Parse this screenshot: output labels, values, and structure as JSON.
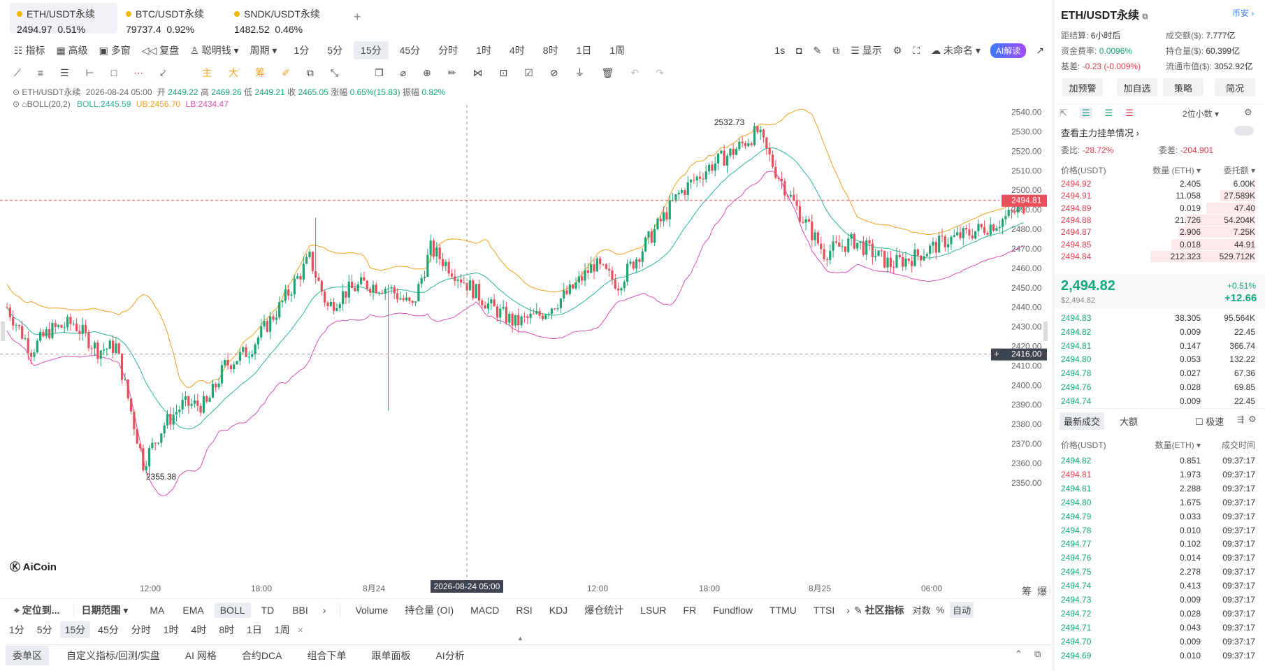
{
  "tickers": [
    {
      "name": "ETH/USDT永续",
      "price": "2494.97",
      "change": "0.51%"
    },
    {
      "name": "BTC/USDT永续",
      "price": "79737.4",
      "change": "0.92%"
    },
    {
      "name": "SNDK/USDT永续",
      "price": "1482.52",
      "change": "0.46%"
    }
  ],
  "toolbar": {
    "indicator": "指标",
    "advanced": "高级",
    "multi_window": "多窗",
    "replay": "复盘",
    "smart_money": "聪明钱",
    "period_label": "周期",
    "periods": [
      "1分",
      "5分",
      "15分",
      "45分",
      "分时",
      "1时",
      "4时",
      "8时",
      "1日",
      "1周"
    ],
    "selected_period": "15分",
    "right_interval": "1s",
    "display": "显示",
    "unnamed": "未命名",
    "ai_explain": "AI解读"
  },
  "drawing_tools": {
    "labels": [
      "主",
      "大",
      "筹"
    ]
  },
  "chart_info": {
    "symbol": "ETH/USDT永续",
    "datetime": "2026-08-24 05:00",
    "open_label": "开",
    "open": "2449.22",
    "high_label": "高",
    "high": "2469.26",
    "low_label": "低",
    "low": "2449.21",
    "close_label": "收",
    "close": "2465.05",
    "change_label": "涨幅",
    "change": "0.65%(15.83)",
    "amplitude_label": "振幅",
    "amplitude": "0.82%",
    "boll_label": "BOLL(20,2)",
    "boll": "BOLL:2445.59",
    "ub": "UB:2456.70",
    "lb": "LB:2434.47",
    "max_label": "2532.73",
    "min_label": "2355.38",
    "crosshair_date": "2026-08-24 05:00",
    "current_price": "2494.81",
    "cross_price": "2416.00",
    "logo": "AiCoin",
    "y_ticks": [
      "2540.00",
      "2530.00",
      "2520.00",
      "2510.00",
      "2500.00",
      "2490.00",
      "2480.00",
      "2470.00",
      "2460.00",
      "2450.00",
      "2440.00",
      "2430.00",
      "2420.00",
      "2410.00",
      "2400.00",
      "2390.00",
      "2380.00",
      "2370.00",
      "2360.00",
      "2350.00"
    ],
    "x_ticks": [
      "12:00",
      "18:00",
      "8月24",
      "12:00",
      "18:00",
      "8月25",
      "06:00"
    ],
    "corner_labels": [
      "筹",
      "爆"
    ]
  },
  "chart_data": {
    "type": "candlestick",
    "interval": "15分",
    "ylim": [
      2350,
      2545
    ],
    "series": {
      "open": [],
      "close": []
    },
    "overlays": [
      "BOLL(20,2)"
    ]
  },
  "indicator_bar": {
    "locate": "定位到...",
    "date_range": "日期范围",
    "main": [
      "MA",
      "EMA",
      "BOLL",
      "TD",
      "BBI"
    ],
    "sub": [
      "Volume",
      "持仓量 (OI)",
      "MACD",
      "RSI",
      "KDJ",
      "爆仓统计",
      "LSUR",
      "FR",
      "Fundflow",
      "TTMU",
      "TTSI"
    ],
    "community": "社区指标",
    "log": "对数",
    "pct": "%",
    "auto": "自动"
  },
  "period_bar": [
    "1分",
    "5分",
    "15分",
    "45分",
    "分时",
    "1时",
    "4时",
    "8时",
    "1日",
    "1周"
  ],
  "bottom_tabs": [
    "委单区",
    "自定义指标/回测/实盘",
    "AI 网格",
    "合约DCA",
    "组合下单",
    "跟单面板",
    "AI分析"
  ],
  "right_panel": {
    "title": "ETH/USDT永续",
    "exchange": "币安",
    "settle_label": "距结算:",
    "settle": "6小时后",
    "volume_label": "成交额($):",
    "volume": "7.777亿",
    "funding_label": "资金费率:",
    "funding": "0.0096%",
    "oi_label": "持仓量($):",
    "oi": "60.399亿",
    "basis_label": "基差:",
    "basis": "-0.23 (-0.009%)",
    "mcap_label": "流通市值($):",
    "mcap": "3052.92亿",
    "buttons": [
      "加预警",
      "加自选",
      "策略",
      "简况"
    ],
    "decimals": "2位小数",
    "main_orders": "查看主力挂单情况",
    "ratio_label": "委比:",
    "ratio": "-28.72%",
    "diff_label": "委差:",
    "diff": "-204.901",
    "ob_headers": [
      "价格(USDT)",
      "数量 (ETH)",
      "委托额"
    ],
    "asks": [
      {
        "p": "2494.92",
        "q": "2.405",
        "t": "6.00K",
        "d": 0.02
      },
      {
        "p": "2494.91",
        "q": "11.058",
        "t": "27.589K",
        "d": 0.25
      },
      {
        "p": "2494.89",
        "q": "0.019",
        "t": "47.40",
        "d": 0.35
      },
      {
        "p": "2494.88",
        "q": "21.726",
        "t": "54.204K",
        "d": 0.5
      },
      {
        "p": "2494.87",
        "q": "2.906",
        "t": "7.25K",
        "d": 0.55
      },
      {
        "p": "2494.85",
        "q": "0.018",
        "t": "44.91",
        "d": 0.6
      },
      {
        "p": "2494.84",
        "q": "212.323",
        "t": "529.712K",
        "d": 0.75
      }
    ],
    "last_price": "2,494.82",
    "last_usd": "$2,494.82",
    "last_pct": "+0.51%",
    "last_chg": "+12.66",
    "bids": [
      {
        "p": "2494.83",
        "q": "38.305",
        "t": "95.564K"
      },
      {
        "p": "2494.82",
        "q": "0.009",
        "t": "22.45"
      },
      {
        "p": "2494.81",
        "q": "0.147",
        "t": "366.74"
      },
      {
        "p": "2494.80",
        "q": "0.053",
        "t": "132.22"
      },
      {
        "p": "2494.78",
        "q": "0.027",
        "t": "67.36"
      },
      {
        "p": "2494.76",
        "q": "0.028",
        "t": "69.85"
      },
      {
        "p": "2494.74",
        "q": "0.009",
        "t": "22.45"
      }
    ],
    "trade_tabs": [
      "最新成交",
      "大额"
    ],
    "fast_label": "极速",
    "trade_headers": [
      "价格(USDT)",
      "数量(ETH)",
      "成交时间"
    ],
    "trades": [
      {
        "p": "2494.82",
        "q": "0.851",
        "t": "09:37:17",
        "s": "b"
      },
      {
        "p": "2494.81",
        "q": "1.973",
        "t": "09:37:17",
        "s": "s"
      },
      {
        "p": "2494.81",
        "q": "2.288",
        "t": "09:37:17",
        "s": "b"
      },
      {
        "p": "2494.80",
        "q": "1.675",
        "t": "09:37:17",
        "s": "b"
      },
      {
        "p": "2494.79",
        "q": "0.033",
        "t": "09:37:17",
        "s": "b"
      },
      {
        "p": "2494.78",
        "q": "0.010",
        "t": "09:37:17",
        "s": "b"
      },
      {
        "p": "2494.77",
        "q": "0.102",
        "t": "09:37:17",
        "s": "b"
      },
      {
        "p": "2494.76",
        "q": "0.014",
        "t": "09:37:17",
        "s": "b"
      },
      {
        "p": "2494.75",
        "q": "2.278",
        "t": "09:37:17",
        "s": "b"
      },
      {
        "p": "2494.74",
        "q": "0.413",
        "t": "09:37:17",
        "s": "b"
      },
      {
        "p": "2494.73",
        "q": "0.009",
        "t": "09:37:17",
        "s": "b"
      },
      {
        "p": "2494.72",
        "q": "0.028",
        "t": "09:37:17",
        "s": "b"
      },
      {
        "p": "2494.71",
        "q": "0.043",
        "t": "09:37:17",
        "s": "b"
      },
      {
        "p": "2494.70",
        "q": "0.009",
        "t": "09:37:17",
        "s": "b"
      },
      {
        "p": "2494.69",
        "q": "0.010",
        "t": "09:37:17",
        "s": "b"
      }
    ]
  }
}
